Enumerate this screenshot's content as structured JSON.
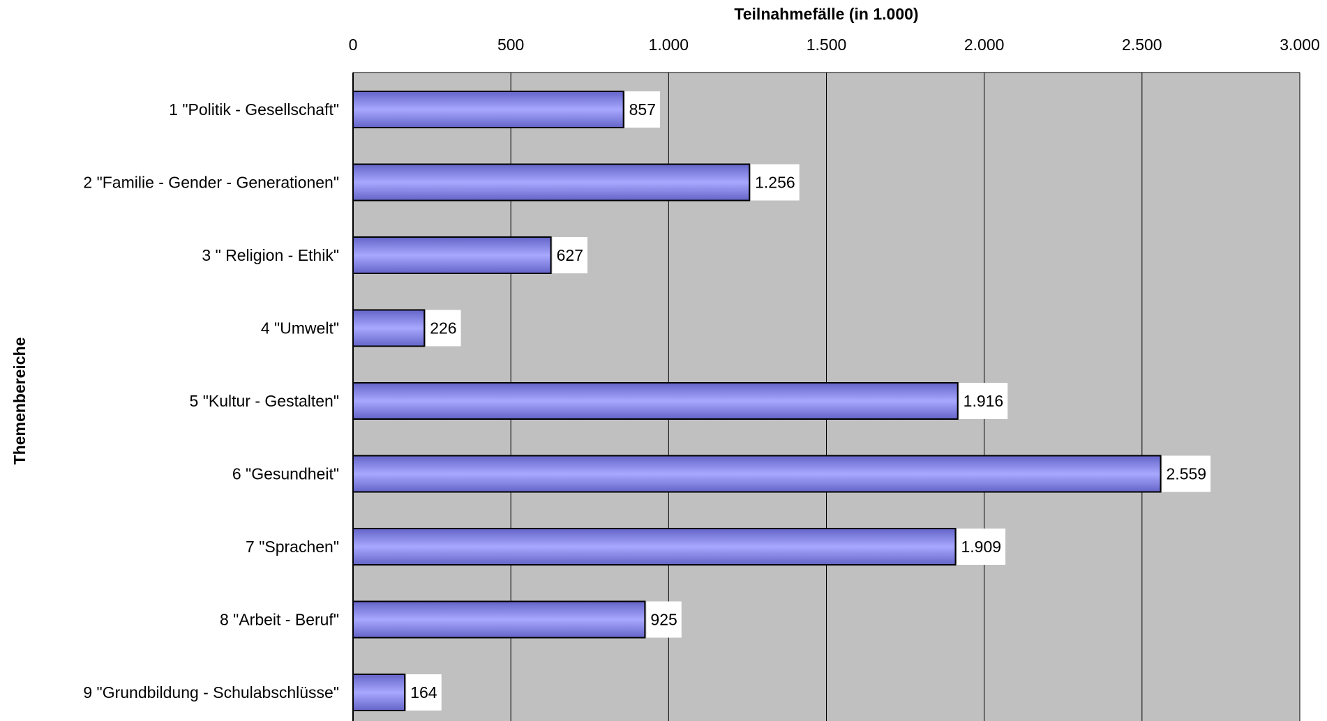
{
  "chart_data": {
    "type": "bar",
    "orientation": "horizontal",
    "title": "",
    "xlabel": "Teilnahmefälle (in 1.000)",
    "ylabel": "Themenbereiche",
    "xaxis_position": "top",
    "xlim": [
      0,
      3000
    ],
    "xticks": [
      0,
      500,
      1000,
      1500,
      2000,
      2500,
      3000
    ],
    "xtick_labels": [
      "0",
      "500",
      "1.000",
      "1.500",
      "2.000",
      "2.500",
      "3.000"
    ],
    "grid": true,
    "legend": "none",
    "categories": [
      "1 \"Politik - Gesellschaft\"",
      "2 \"Familie - Gender - Generationen\"",
      "3 \" Religion - Ethik\"",
      "4 \"Umwelt\"",
      "5 \"Kultur - Gestalten\"",
      "6 \"Gesundheit\"",
      "7 \"Sprachen\"",
      "8 \"Arbeit - Beruf\"",
      "9 \"Grundbildung - Schulabschlüsse\""
    ],
    "values": [
      857,
      1256,
      627,
      226,
      1916,
      2559,
      1909,
      925,
      164
    ],
    "data_labels": [
      "857",
      "1.256",
      "627",
      "226",
      "1.916",
      "2.559",
      "1.909",
      "925",
      "164"
    ],
    "colors": {
      "plot_background": "#c0c0c0",
      "bar_fill_light": "#a8a8ff",
      "bar_fill_dark": "#6464c8",
      "bar_stroke": "#000000",
      "gridline": "#000000",
      "label_background": "#ffffff"
    }
  }
}
